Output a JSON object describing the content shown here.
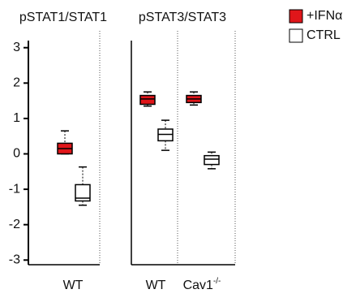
{
  "chart_data": {
    "type": "box",
    "ylim": [
      -3.2,
      3.2
    ],
    "yticks": [
      -3,
      -2,
      -1,
      0,
      1,
      2,
      3
    ],
    "series": [
      {
        "name": "+IFNα",
        "color": "#e0161a"
      },
      {
        "name": "CTRL",
        "color": "#ffffff"
      }
    ],
    "panels": [
      {
        "title": "pSTAT1/STAT1",
        "groups": [
          {
            "label": "WT",
            "boxes": [
              {
                "whislo": 0.0,
                "q1": 0.0,
                "med": 0.15,
                "q3": 0.3,
                "whishi": 0.65
              },
              {
                "whislo": -1.45,
                "q1": -1.33,
                "med": -1.25,
                "q3": -0.87,
                "whishi": -0.37
              }
            ]
          }
        ]
      },
      {
        "title": "pSTAT3/STAT3",
        "groups": [
          {
            "label": "WT",
            "boxes": [
              {
                "whislo": 1.35,
                "q1": 1.4,
                "med": 1.55,
                "q3": 1.65,
                "whishi": 1.75
              },
              {
                "whislo": 0.1,
                "q1": 0.37,
                "med": 0.55,
                "q3": 0.7,
                "whishi": 0.95
              }
            ]
          },
          {
            "label": "Cav1",
            "sup": "-/-",
            "boxes": [
              {
                "whislo": 1.38,
                "q1": 1.45,
                "med": 1.55,
                "q3": 1.65,
                "whishi": 1.75
              },
              {
                "whislo": -0.42,
                "q1": -0.3,
                "med": -0.15,
                "q3": -0.05,
                "whishi": 0.05
              }
            ]
          }
        ]
      }
    ]
  }
}
